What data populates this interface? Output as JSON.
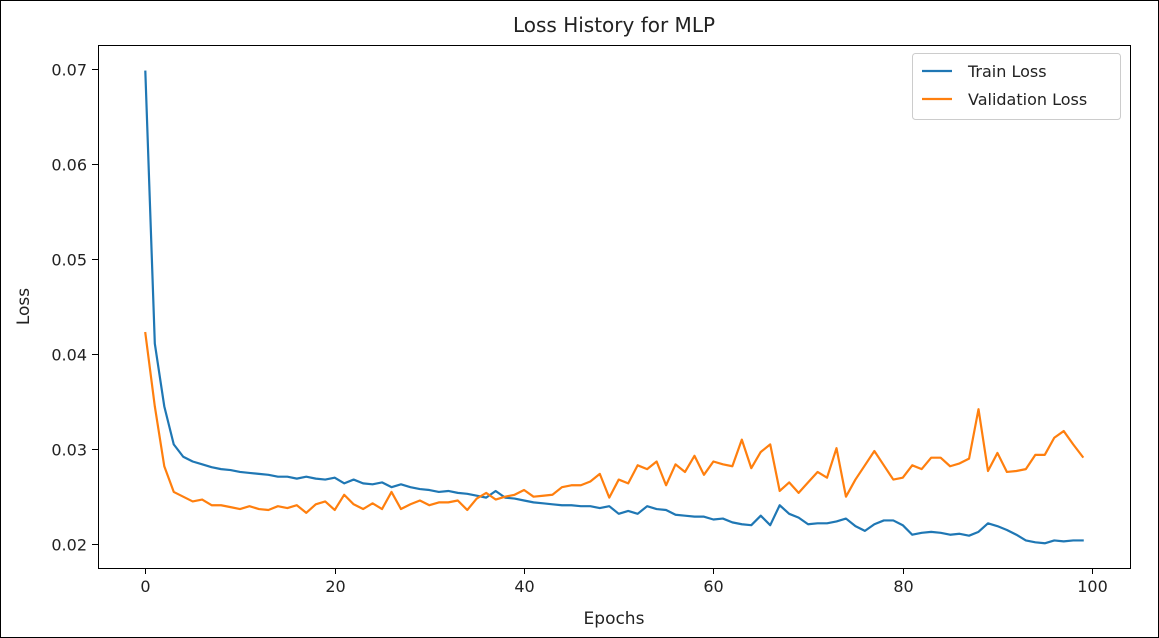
{
  "chart_data": {
    "type": "line",
    "title": "Loss History for MLP",
    "xlabel": "Epochs",
    "ylabel": "Loss",
    "xlim": [
      -5,
      104
    ],
    "ylim": [
      0.0175,
      0.0725
    ],
    "xticks": [
      0,
      20,
      40,
      60,
      80,
      100
    ],
    "xtick_labels": [
      "0",
      "20",
      "40",
      "60",
      "80",
      "100"
    ],
    "yticks": [
      0.02,
      0.03,
      0.04,
      0.05,
      0.06,
      0.07
    ],
    "ytick_labels": [
      "0.02",
      "0.03",
      "0.04",
      "0.05",
      "0.06",
      "0.07"
    ],
    "grid": false,
    "legend_position": "top-right",
    "x": [
      0,
      1,
      2,
      3,
      4,
      5,
      6,
      7,
      8,
      9,
      10,
      11,
      12,
      13,
      14,
      15,
      16,
      17,
      18,
      19,
      20,
      21,
      22,
      23,
      24,
      25,
      26,
      27,
      28,
      29,
      30,
      31,
      32,
      33,
      34,
      35,
      36,
      37,
      38,
      39,
      40,
      41,
      42,
      43,
      44,
      45,
      46,
      47,
      48,
      49,
      50,
      51,
      52,
      53,
      54,
      55,
      56,
      57,
      58,
      59,
      60,
      61,
      62,
      63,
      64,
      65,
      66,
      67,
      68,
      69,
      70,
      71,
      72,
      73,
      74,
      75,
      76,
      77,
      78,
      79,
      80,
      81,
      82,
      83,
      84,
      85,
      86,
      87,
      88,
      89,
      90,
      91,
      92,
      93,
      94,
      95,
      96,
      97,
      98,
      99
    ],
    "series": [
      {
        "name": "Train Loss",
        "color": "#1f77b4",
        "values": [
          0.0697,
          0.0411,
          0.0345,
          0.0305,
          0.0292,
          0.0287,
          0.0284,
          0.0281,
          0.0279,
          0.0278,
          0.0276,
          0.0275,
          0.0274,
          0.0273,
          0.0271,
          0.0271,
          0.0269,
          0.0271,
          0.0269,
          0.0268,
          0.027,
          0.0264,
          0.0268,
          0.0264,
          0.0263,
          0.0265,
          0.026,
          0.0263,
          0.026,
          0.0258,
          0.0257,
          0.0255,
          0.0256,
          0.0254,
          0.0253,
          0.0251,
          0.0249,
          0.0256,
          0.0249,
          0.0248,
          0.0246,
          0.0244,
          0.0243,
          0.0242,
          0.0241,
          0.0241,
          0.024,
          0.024,
          0.0238,
          0.024,
          0.0232,
          0.0235,
          0.0232,
          0.024,
          0.0237,
          0.0236,
          0.0231,
          0.023,
          0.0229,
          0.0229,
          0.0226,
          0.0227,
          0.0223,
          0.0221,
          0.022,
          0.023,
          0.022,
          0.0241,
          0.0232,
          0.0228,
          0.0221,
          0.0222,
          0.0222,
          0.0224,
          0.0227,
          0.0219,
          0.0214,
          0.0221,
          0.0225,
          0.0225,
          0.022,
          0.021,
          0.0212,
          0.0213,
          0.0212,
          0.021,
          0.0211,
          0.0209,
          0.0213,
          0.0222,
          0.0219,
          0.0215,
          0.021,
          0.0204,
          0.0202,
          0.0201,
          0.0204,
          0.0203,
          0.0204,
          0.0204
        ]
      },
      {
        "name": "Validation Loss",
        "color": "#ff7f0e",
        "values": [
          0.0422,
          0.0345,
          0.0282,
          0.0255,
          0.025,
          0.0245,
          0.0247,
          0.0241,
          0.0241,
          0.0239,
          0.0237,
          0.024,
          0.0237,
          0.0236,
          0.024,
          0.0238,
          0.0241,
          0.0233,
          0.0242,
          0.0245,
          0.0236,
          0.0252,
          0.0242,
          0.0237,
          0.0243,
          0.0237,
          0.0255,
          0.0237,
          0.0242,
          0.0246,
          0.0241,
          0.0244,
          0.0244,
          0.0246,
          0.0236,
          0.0248,
          0.0254,
          0.0247,
          0.025,
          0.0252,
          0.0257,
          0.025,
          0.0251,
          0.0252,
          0.026,
          0.0262,
          0.0262,
          0.0266,
          0.0274,
          0.0249,
          0.0268,
          0.0264,
          0.0283,
          0.0279,
          0.0287,
          0.0262,
          0.0284,
          0.0276,
          0.0293,
          0.0273,
          0.0287,
          0.0284,
          0.0282,
          0.031,
          0.028,
          0.0297,
          0.0305,
          0.0256,
          0.0265,
          0.0254,
          0.0265,
          0.0276,
          0.027,
          0.0301,
          0.025,
          0.0268,
          0.0283,
          0.0298,
          0.0283,
          0.0268,
          0.027,
          0.0283,
          0.0279,
          0.0291,
          0.0291,
          0.0282,
          0.0285,
          0.029,
          0.0342,
          0.0277,
          0.0296,
          0.0276,
          0.0277,
          0.0279,
          0.0294,
          0.0294,
          0.0312,
          0.0319,
          0.0305,
          0.0292
        ]
      }
    ]
  }
}
